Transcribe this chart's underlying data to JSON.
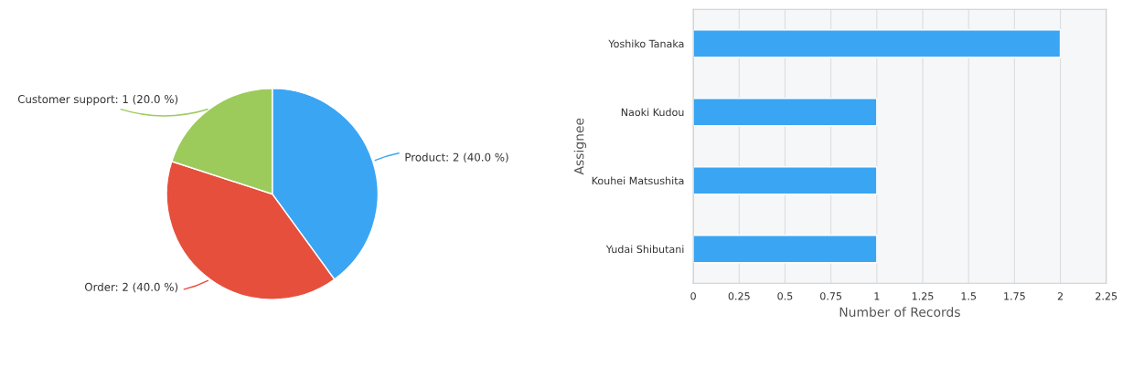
{
  "chart_data": [
    {
      "type": "pie",
      "categories": [
        "Product",
        "Order",
        "Customer support"
      ],
      "values": [
        2,
        2,
        1
      ],
      "colors": [
        "#3aa5f3",
        "#e64f3c",
        "#9ccb5c"
      ],
      "value_labels": [
        ": 2 (40.0 %)",
        ": 2 (40.0 %)",
        ": 1 (20.0 %)"
      ]
    },
    {
      "type": "bar",
      "orientation": "horizontal",
      "categories": [
        "Yoshiko Tanaka",
        "Naoki Kudou",
        "Kouhei Matsushita",
        "Yudai Shibutani"
      ],
      "values": [
        2,
        1,
        1,
        1
      ],
      "color": "#3aa5f3",
      "xlim": [
        0,
        2.25
      ],
      "xticks": [
        0,
        0.25,
        0.5,
        0.75,
        1,
        1.25,
        1.5,
        1.75,
        2,
        2.25
      ],
      "xlabel": "Number of Records",
      "ylabel": "Assignee",
      "grid": "x"
    }
  ]
}
